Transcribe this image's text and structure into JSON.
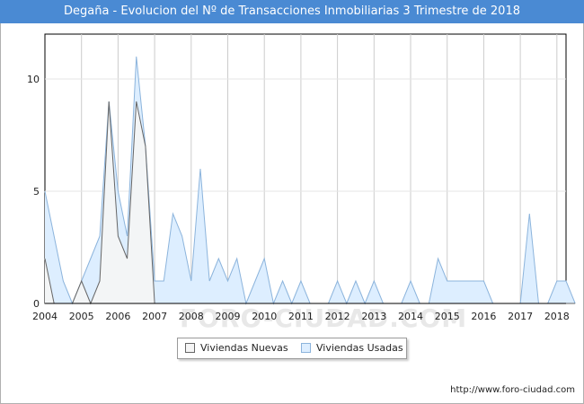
{
  "header": {
    "title": "Degaña - Evolucion del Nº de Transacciones Inmobiliarias 3 Trimestre de 2018"
  },
  "footer": {
    "url": "http://www.foro-ciudad.com"
  },
  "watermark": {
    "text": "FORO-CIUDAD.COM"
  },
  "legend": {
    "nuevas": "Viviendas Nuevas",
    "usadas": "Viviendas Usadas"
  },
  "colors": {
    "header_bg": "#4a8ad3",
    "nuevas_fill": "#f5f5f5",
    "nuevas_line": "#666666",
    "usadas_fill": "#ddeeff",
    "usadas_line": "#8cb4dc",
    "grid": "#cccccc"
  },
  "chart_data": {
    "type": "area",
    "title": "Degaña - Evolucion del Nº de Transacciones Inmobiliarias 3 Trimestre de 2018",
    "xlabel": "",
    "ylabel": "",
    "xlim": [
      2004,
      2018.25
    ],
    "ylim": [
      0,
      12
    ],
    "y_ticks": [
      0,
      5,
      10
    ],
    "x_ticks": [
      2004,
      2005,
      2006,
      2007,
      2008,
      2009,
      2010,
      2011,
      2012,
      2013,
      2014,
      2015,
      2016,
      2017,
      2018
    ],
    "x_tick_labels": [
      "2004",
      "2005",
      "2006",
      "2007",
      "2008",
      "2009",
      "2010",
      "2011",
      "2012",
      "2013",
      "2014",
      "2015",
      "2016",
      "2017",
      "2018"
    ],
    "grid": "vertical",
    "legend_position": "bottom",
    "x_quarters": [
      "2004T1",
      "2004T2",
      "2004T3",
      "2004T4",
      "2005T1",
      "2005T2",
      "2005T3",
      "2005T4",
      "2006T1",
      "2006T2",
      "2006T3",
      "2006T4",
      "2007T1",
      "2007T2",
      "2007T3",
      "2007T4",
      "2008T1",
      "2008T2",
      "2008T3",
      "2008T4",
      "2009T1",
      "2009T2",
      "2009T3",
      "2009T4",
      "2010T1",
      "2010T2",
      "2010T3",
      "2010T4",
      "2011T1",
      "2011T2",
      "2011T3",
      "2011T4",
      "2012T1",
      "2012T2",
      "2012T3",
      "2012T4",
      "2013T1",
      "2013T2",
      "2013T3",
      "2013T4",
      "2014T1",
      "2014T2",
      "2014T3",
      "2014T4",
      "2015T1",
      "2015T2",
      "2015T3",
      "2015T4",
      "2016T1",
      "2016T2",
      "2016T3",
      "2016T4",
      "2017T1",
      "2017T2",
      "2017T3",
      "2017T4",
      "2018T1",
      "2018T2",
      "2018T3"
    ],
    "series": [
      {
        "name": "Viviendas Nuevas",
        "values": [
          2,
          0,
          0,
          0,
          1,
          0,
          1,
          9,
          3,
          2,
          9,
          7,
          0,
          0,
          0,
          0,
          0,
          0,
          0,
          0,
          0,
          0,
          0,
          0,
          0,
          0,
          0,
          0,
          0,
          0,
          0,
          0,
          0,
          0,
          0,
          0,
          0,
          0,
          0,
          0,
          0,
          0,
          0,
          0,
          0,
          0,
          0,
          0,
          0,
          0,
          0,
          0,
          0,
          0,
          0,
          0,
          0,
          0,
          0
        ]
      },
      {
        "name": "Viviendas Usadas",
        "values": [
          5,
          3,
          1,
          0,
          1,
          2,
          3,
          9,
          5,
          3,
          11,
          7,
          1,
          1,
          4,
          3,
          1,
          6,
          1,
          2,
          1,
          2,
          0,
          1,
          2,
          0,
          1,
          0,
          1,
          0,
          0,
          0,
          1,
          0,
          1,
          0,
          1,
          0,
          0,
          0,
          1,
          0,
          0,
          2,
          1,
          1,
          1,
          1,
          1,
          0,
          0,
          0,
          0,
          4,
          0,
          0,
          1,
          1,
          0
        ]
      }
    ]
  }
}
